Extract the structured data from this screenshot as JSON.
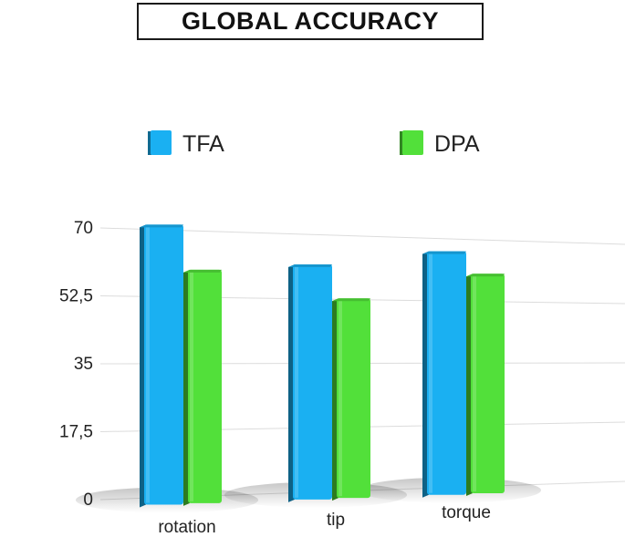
{
  "chart_data": {
    "type": "bar",
    "title": "GLOBAL ACCURACY",
    "categories": [
      "rotation",
      "tip",
      "torque"
    ],
    "series": [
      {
        "name": "TFA",
        "values": [
          70,
          60.5,
          65
        ],
        "color": "#1ab0f2"
      },
      {
        "name": "DPA",
        "values": [
          58.5,
          51.5,
          59
        ],
        "color": "#52e03a"
      }
    ],
    "yticks": [
      "0",
      "17,5",
      "35",
      "52,5",
      "70"
    ],
    "ylim": [
      0,
      70
    ],
    "grid": true,
    "legend_position": "top",
    "style": "3d-perspective"
  }
}
